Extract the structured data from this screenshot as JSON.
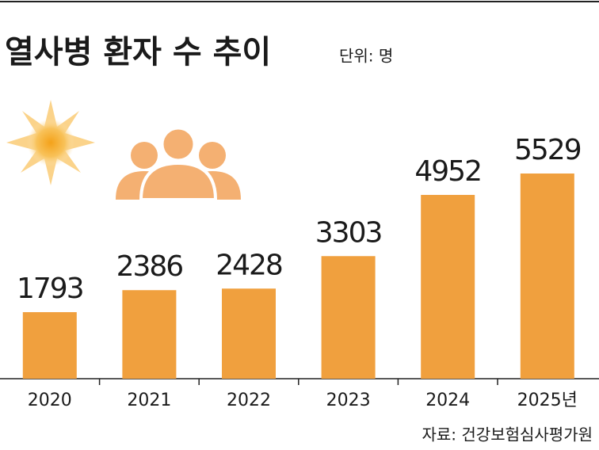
{
  "chart_data": {
    "type": "bar",
    "title": "열사병 환자 수 추이",
    "unit": "단위: 명",
    "source": "자료: 건강보험심사평가원",
    "categories": [
      "2020",
      "2021",
      "2022",
      "2023",
      "2024",
      "2025년"
    ],
    "values": [
      1793,
      2386,
      2428,
      3303,
      4952,
      5529
    ],
    "color": "#f0a03e"
  }
}
